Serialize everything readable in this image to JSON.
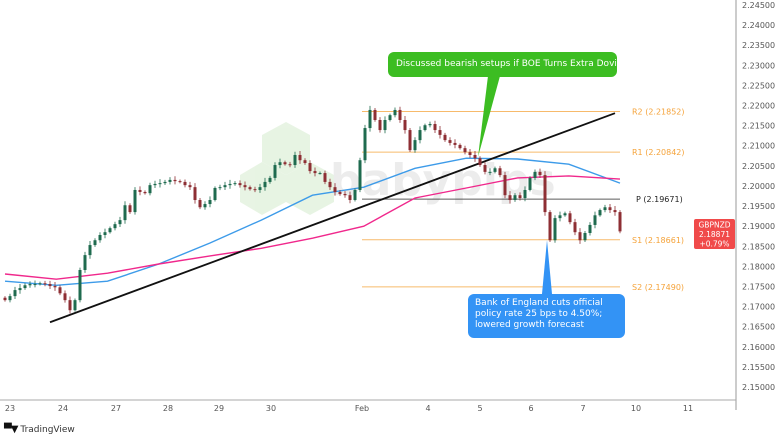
{
  "chart_data": {
    "type": "candlestick",
    "symbol": "GBPNZD",
    "last_price": "2.18871",
    "change": "+0.79%",
    "y_ticks": [
      "2.24500",
      "2.24000",
      "2.23500",
      "2.23000",
      "2.22500",
      "2.22000",
      "2.21500",
      "2.21000",
      "2.20500",
      "2.20000",
      "2.19500",
      "2.19000",
      "2.18500",
      "2.18000",
      "2.17500",
      "2.17000",
      "2.16500",
      "2.16000",
      "2.15500",
      "2.15000"
    ],
    "ylim": [
      2.15,
      2.245
    ],
    "x_ticks": [
      "23",
      "24",
      "27",
      "28",
      "29",
      "30",
      "Feb",
      "4",
      "5",
      "6",
      "7",
      "10",
      "11"
    ],
    "close": [
      2.1716,
      2.1726,
      2.1741,
      2.1746,
      2.1753,
      2.1756,
      2.1756,
      2.1758,
      2.1756,
      2.1751,
      2.1748,
      2.1733,
      2.1716,
      2.1691,
      2.1716,
      2.1791,
      2.1828,
      2.1853,
      2.1865,
      2.1878,
      2.1885,
      2.1895,
      2.1905,
      2.1915,
      2.1952,
      2.1935,
      2.199,
      2.1985,
      2.1982,
      2.2002,
      2.2005,
      2.2007,
      2.201,
      2.2015,
      2.2012,
      2.201,
      2.2002,
      2.1997,
      2.1965,
      2.1947,
      2.1955,
      2.1965,
      2.1995,
      2.1997,
      2.2002,
      2.2005,
      2.2007,
      2.2002,
      2.1997,
      2.1992,
      2.199,
      2.1997,
      2.201,
      2.202,
      2.2052,
      2.2059,
      2.2054,
      2.2052,
      2.2077,
      2.2064,
      2.2057,
      2.2037,
      2.2032,
      2.2032,
      2.201,
      2.1997,
      2.1985,
      2.198,
      2.1977,
      2.1965,
      2.199,
      2.2064,
      2.2144,
      2.2189,
      2.2164,
      2.2139,
      2.2164,
      2.2176,
      2.2189,
      2.2164,
      2.2139,
      2.2089,
      2.2114,
      2.2139,
      2.2151,
      2.2154,
      2.2139,
      2.2127,
      2.2114,
      2.2107,
      2.2102,
      2.2094,
      2.2084,
      2.2077,
      2.2069,
      2.2052,
      2.2035,
      2.2035,
      2.2044,
      2.2027,
      2.1977,
      2.1965,
      2.1977,
      2.197,
      2.199,
      2.202,
      2.2035,
      2.2027,
      2.1935,
      2.1865,
      2.192,
      2.1927,
      2.1932,
      2.191,
      2.1885,
      2.1865,
      2.1883,
      2.1903,
      2.1927,
      2.194,
      2.1947,
      2.194,
      2.1935,
      2.1887
    ],
    "moving_averages": [
      {
        "color": "#3d9be9",
        "values": [
          2.1763,
          2.1753,
          2.1763,
          2.1806,
          2.1858,
          2.1915,
          2.1977,
          2.1997,
          2.2044,
          2.2069,
          2.2067,
          2.2054,
          2.2007
        ]
      },
      {
        "color": "#f0288c",
        "values": [
          2.1781,
          2.1768,
          2.1783,
          2.1806,
          2.1826,
          2.1845,
          2.187,
          2.19,
          2.197,
          2.1995,
          2.202,
          2.2025,
          2.2017
        ]
      }
    ],
    "trendline": {
      "start": 2.1661,
      "end": 2.2181,
      "color": "#111111"
    },
    "pivots": [
      {
        "label": "R2 (2.21852)",
        "value": 2.21852,
        "color": "#f5a33a"
      },
      {
        "label": "R1 (2.20842)",
        "value": 2.20842,
        "color": "#f5a33a"
      },
      {
        "label": "P (2.19671)",
        "value": 2.19671,
        "color": "#333333"
      },
      {
        "label": "S1 (2.18661)",
        "value": 2.18661,
        "color": "#f5a33a"
      },
      {
        "label": "S2 (2.17490)",
        "value": 2.1749,
        "color": "#f5a33a"
      }
    ],
    "annotations": [
      {
        "text": "Discussed bearish setups if BOE Turns Extra Dovish",
        "color": "#3cbd22"
      },
      {
        "text": "Bank of England cuts official policy rate 25 bps to 4.50%; lowered growth forecast",
        "color": "#3393f5"
      }
    ],
    "colors": {
      "up": "#1f6b4f",
      "down": "#8e2f34",
      "price_label": "#f04a4a"
    }
  },
  "watermark": "babypips",
  "branding": {
    "logo": "TV",
    "name": "TradingView"
  }
}
